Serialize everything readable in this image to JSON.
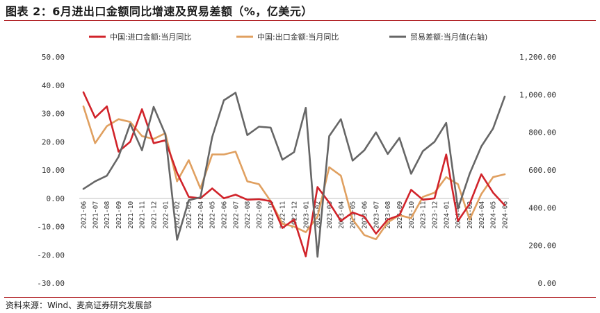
{
  "title": "图表 2：6月进出口金额同比增速及贸易差额（%，亿美元）",
  "source": "资料来源：Wind、麦高证券研究发展部",
  "chart_data": {
    "type": "line",
    "categories": [
      "2021-06",
      "2021-07",
      "2021-08",
      "2021-09",
      "2021-10",
      "2021-11",
      "2021-12",
      "2022-01",
      "2022-02",
      "2022-03",
      "2022-04",
      "2022-05",
      "2022-06",
      "2022-07",
      "2022-08",
      "2022-09",
      "2022-10",
      "2022-11",
      "2022-12",
      "2023-01",
      "2023-02",
      "2023-03",
      "2023-04",
      "2023-05",
      "2023-06",
      "2023-07",
      "2023-08",
      "2023-09",
      "2023-10",
      "2023-11",
      "2023-12",
      "2024-01",
      "2024-02",
      "2024-03",
      "2024-04",
      "2024-05",
      "2024-06"
    ],
    "x_tick_labels": [
      "2021-06",
      "2021-07",
      "2021-08",
      "2021-09",
      "2021-10",
      "2021-11",
      "2021-12",
      "2022-01",
      "2022-02",
      "2022-03",
      "2022-04",
      "2022-05",
      "2022-06",
      "2022-07",
      "2022-08",
      "2022-09",
      "2022-10",
      "2022-11",
      "2022-12",
      "2023-01",
      "2023-02",
      "2023-03",
      "2023-04",
      "2023-05",
      "2023-06",
      "2023-07",
      "2023-08",
      "2023-09",
      "2023-10",
      "2023-11",
      "2023-12",
      "2024-01",
      "2024-02",
      "2024-03",
      "2024-04",
      "2024-05",
      "2024-06"
    ],
    "left_axis": {
      "ylim": [
        -30,
        50
      ],
      "ticks": [
        -30,
        -20,
        -10,
        0,
        10,
        20,
        30,
        40,
        50
      ],
      "tick_labels": [
        "-30.00",
        "-20.00",
        "-10.00",
        "0.00",
        "10.00",
        "20.00",
        "30.00",
        "40.00",
        "50.00"
      ]
    },
    "right_axis": {
      "ylim": [
        0,
        1200
      ],
      "ticks": [
        0,
        200,
        400,
        600,
        800,
        1000,
        1200
      ],
      "tick_labels": [
        "0.00",
        "200.00",
        "400.00",
        "600.00",
        "800.00",
        "1,000.00",
        "1,200.00"
      ]
    },
    "legend_position": "top",
    "series": [
      {
        "name": "中国:进口金额:当月同比",
        "color": "#d1232a",
        "axis": "left",
        "values": [
          37.5,
          28.5,
          32.5,
          16.5,
          20,
          31.5,
          19.5,
          20.5,
          9,
          0.5,
          0,
          3.5,
          0,
          1.3,
          -0.5,
          -0.3,
          -1,
          -10.5,
          -7.5,
          -20.5,
          4,
          -1.5,
          -8,
          -5,
          -6.5,
          -12.5,
          -7.5,
          -6,
          3,
          -0.5,
          0,
          15.5,
          -8,
          -2,
          8.5,
          2,
          -2.5
        ]
      },
      {
        "name": "中国:出口金额:当月同比",
        "color": "#e0a060",
        "axis": "left",
        "values": [
          32.5,
          19.5,
          25.5,
          28,
          27,
          22,
          21,
          23,
          6,
          13.5,
          3.5,
          15.5,
          15.5,
          16.5,
          6,
          5,
          -1,
          -9,
          -10,
          -12,
          -6.5,
          11,
          8,
          -7.5,
          -13,
          -14.5,
          -8.5,
          -6,
          -7,
          0.5,
          2,
          7.5,
          5,
          -7.5,
          1.5,
          7.5,
          8.5
        ]
      },
      {
        "name": "贸易差额:当月值(右轴)",
        "color": "#666666",
        "axis": "right",
        "values": [
          500,
          540,
          570,
          670,
          845,
          705,
          935,
          790,
          230,
          440,
          455,
          775,
          970,
          1010,
          785,
          830,
          825,
          655,
          695,
          930,
          140,
          780,
          870,
          650,
          705,
          800,
          685,
          770,
          580,
          700,
          750,
          850,
          395,
          580,
          725,
          820,
          990
        ]
      }
    ]
  }
}
